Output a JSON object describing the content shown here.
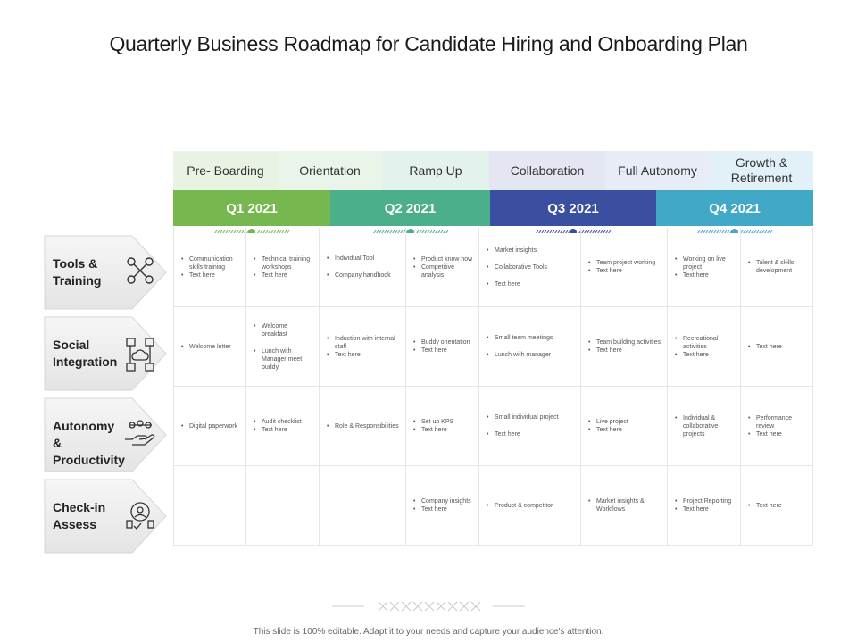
{
  "title": "Quarterly Business Roadmap for Candidate Hiring and Onboarding Plan",
  "stages": [
    {
      "label": "Pre- Boarding",
      "color": "#e8f3e4"
    },
    {
      "label": "Orientation",
      "color": "#eaf5ea"
    },
    {
      "label": "Ramp Up",
      "color": "#e4f2ed"
    },
    {
      "label": "Collaboration",
      "color": "#e4e7f3"
    },
    {
      "label": "Full Autonomy",
      "color": "#e8ecf6"
    },
    {
      "label": "Growth & Retirement",
      "color": "#e2f1f8"
    }
  ],
  "quarters": [
    {
      "label": "Q1 2021",
      "color": "#76b84f"
    },
    {
      "label": "Q2 2021",
      "color": "#4caf8c"
    },
    {
      "label": "Q3 2021",
      "color": "#3a4fa0"
    },
    {
      "label": "Q4 2021",
      "color": "#42a8c8"
    }
  ],
  "rows": [
    {
      "label": "Tools & Training",
      "icon": "tools-icon"
    },
    {
      "label": "Social Integration",
      "icon": "network-icon"
    },
    {
      "label": "Autonomy & Productivity",
      "icon": "hand-gears-icon"
    },
    {
      "label": "Check-in Assess",
      "icon": "assessment-icon"
    }
  ],
  "cells": [
    [
      [
        "Communication skills training",
        "Text here"
      ],
      [
        "Technical training workshops",
        "Text here"
      ],
      [
        "Individual Tool",
        "Company handbook"
      ],
      [
        "Product know how",
        "Competitive analysis"
      ],
      [
        "Market insights",
        "Collaborative Tools",
        "Text here"
      ],
      [
        "Team project working",
        "Text here"
      ],
      [
        "Working on live project",
        "Text here"
      ],
      [
        "Talent & skills development"
      ]
    ],
    [
      [
        "Welcome letter"
      ],
      [
        "Welcome breakfast",
        "Lunch with Manager meet buddy"
      ],
      [
        "Induction with internal staff",
        "Text here"
      ],
      [
        "Buddy orientation",
        "Text here"
      ],
      [
        "Small team meetings",
        "Lunch with manager"
      ],
      [
        "Team building activities",
        "Text here"
      ],
      [
        "Recreational activities",
        "Text here"
      ],
      [
        "Text here"
      ]
    ],
    [
      [
        "Digital paperwork"
      ],
      [
        "Audit checklist",
        "Text here"
      ],
      [
        "Role & Responsibilities"
      ],
      [
        "Set up KPS",
        "Text here"
      ],
      [
        "Small individual project",
        "Text here"
      ],
      [
        "Live project",
        "Text here"
      ],
      [
        "Individual & collaborative projects"
      ],
      [
        "Performance review",
        "Text here"
      ]
    ],
    [
      [],
      [],
      [],
      [
        "Company insights",
        "Text here"
      ],
      [
        "Product & competitor"
      ],
      [
        "Market insights & Workflows"
      ],
      [
        "Project Reporting",
        "Text here"
      ],
      [
        "Text here"
      ]
    ]
  ],
  "footer": "This slide is 100% editable. Adapt it to your needs and capture your audience's attention."
}
